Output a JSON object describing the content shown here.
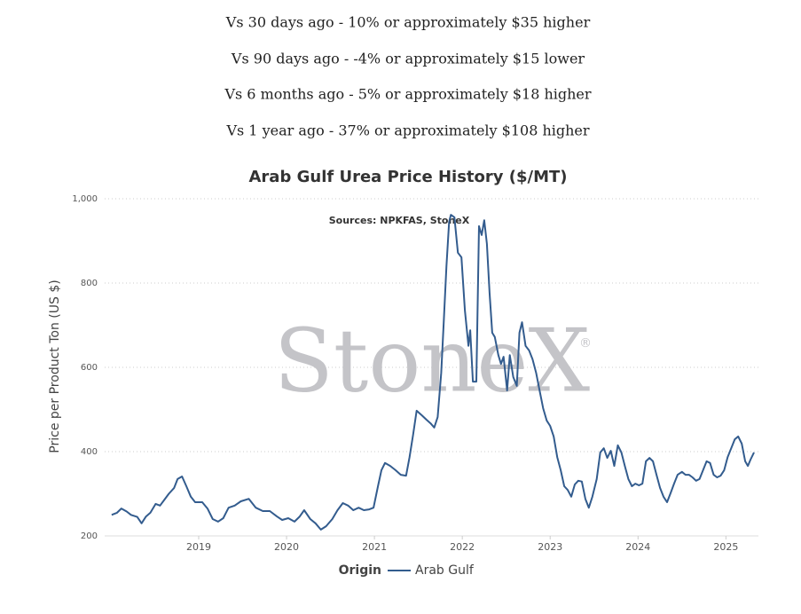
{
  "summary": [
    "Vs 30 days ago - 10% or approximately $35 higher",
    "Vs 90 days ago - -4% or approximately $15 lower",
    "Vs 6 months ago - 5% or approximately $18 higher",
    "Vs 1 year ago - 37% or approximately $108 higher"
  ],
  "chart_data": {
    "type": "line",
    "title": "Arab Gulf Urea Price History ($/MT)",
    "subtitle": "Sources: NPKFAS, StoneX",
    "watermark": "StoneX",
    "watermark_mark": "®",
    "y_label": "Price per Product Ton (US $)",
    "legend_title": "Origin",
    "grid": true,
    "xlim": [
      2017.93,
      2025.37
    ],
    "xticks": [
      2019,
      2020,
      2021,
      2022,
      2023,
      2024,
      2025
    ],
    "ylim": [
      200,
      1000
    ],
    "yticks": [
      200,
      400,
      600,
      800,
      {
        "value": 1000,
        "label": "1,000"
      }
    ],
    "x": [
      2018.01,
      2018.07,
      2018.12,
      2018.18,
      2018.23,
      2018.3,
      2018.35,
      2018.4,
      2018.45,
      2018.51,
      2018.56,
      2018.61,
      2018.66,
      2018.72,
      2018.76,
      2018.81,
      2018.86,
      2018.91,
      2018.96,
      2019.04,
      2019.1,
      2019.16,
      2019.22,
      2019.28,
      2019.34,
      2019.41,
      2019.48,
      2019.57,
      2019.65,
      2019.73,
      2019.81,
      2019.89,
      2019.95,
      2020.02,
      2020.09,
      2020.15,
      2020.2,
      2020.27,
      2020.33,
      2020.39,
      2020.45,
      2020.52,
      2020.58,
      2020.64,
      2020.7,
      2020.76,
      2020.82,
      2020.88,
      2020.94,
      2020.99,
      2021.04,
      2021.08,
      2021.12,
      2021.18,
      2021.24,
      2021.3,
      2021.36,
      2021.4,
      2021.44,
      2021.48,
      2021.54,
      2021.59,
      2021.64,
      2021.68,
      2021.72,
      2021.76,
      2021.79,
      2021.82,
      2021.85,
      2021.87,
      2021.91,
      2021.95,
      2021.99,
      2022.03,
      2022.07,
      2022.09,
      2022.12,
      2022.16,
      2022.19,
      2022.22,
      2022.25,
      2022.28,
      2022.31,
      2022.34,
      2022.37,
      2022.41,
      2022.44,
      2022.47,
      2022.51,
      2022.54,
      2022.58,
      2022.62,
      2022.65,
      2022.68,
      2022.72,
      2022.76,
      2022.8,
      2022.84,
      2022.88,
      2022.92,
      2022.96,
      2023.0,
      2023.04,
      2023.08,
      2023.12,
      2023.16,
      2023.2,
      2023.24,
      2023.28,
      2023.32,
      2023.36,
      2023.4,
      2023.44,
      2023.48,
      2023.53,
      2023.57,
      2023.61,
      2023.65,
      2023.69,
      2023.73,
      2023.77,
      2023.81,
      2023.85,
      2023.89,
      2023.93,
      2023.97,
      2024.01,
      2024.05,
      2024.09,
      2024.13,
      2024.17,
      2024.21,
      2024.25,
      2024.29,
      2024.33,
      2024.37,
      2024.41,
      2024.45,
      2024.5,
      2024.54,
      2024.58,
      2024.62,
      2024.66,
      2024.7,
      2024.74,
      2024.78,
      2024.82,
      2024.86,
      2024.9,
      2024.94,
      2024.98,
      2025.02,
      2025.06,
      2025.1,
      2025.14,
      2025.18,
      2025.22,
      2025.25,
      2025.28,
      2025.32
    ],
    "series": [
      {
        "name": "Arab Gulf",
        "color": "#335c8e",
        "values": [
          250,
          255,
          265,
          258,
          250,
          245,
          230,
          246,
          255,
          276,
          272,
          286,
          300,
          314,
          335,
          341,
          318,
          293,
          280,
          280,
          265,
          240,
          234,
          242,
          267,
          272,
          282,
          288,
          267,
          259,
          259,
          246,
          238,
          242,
          234,
          246,
          261,
          240,
          230,
          215,
          223,
          240,
          261,
          278,
          272,
          261,
          267,
          261,
          263,
          267,
          318,
          356,
          373,
          366,
          356,
          345,
          343,
          387,
          440,
          497,
          486,
          476,
          467,
          457,
          482,
          587,
          714,
          840,
          945,
          962,
          956,
          872,
          861,
          735,
          651,
          688,
          566,
          566,
          935,
          914,
          949,
          893,
          777,
          682,
          672,
          629,
          608,
          625,
          545,
          629,
          577,
          556,
          682,
          707,
          651,
          640,
          619,
          587,
          545,
          503,
          474,
          461,
          436,
          387,
          356,
          318,
          309,
          293,
          322,
          331,
          329,
          288,
          267,
          293,
          335,
          398,
          408,
          385,
          402,
          366,
          415,
          398,
          366,
          335,
          318,
          324,
          320,
          324,
          377,
          385,
          377,
          345,
          314,
          293,
          280,
          301,
          324,
          345,
          352,
          345,
          345,
          339,
          331,
          335,
          356,
          377,
          373,
          345,
          339,
          343,
          356,
          387,
          408,
          429,
          436,
          419,
          377,
          366,
          381,
          398
        ]
      }
    ]
  }
}
